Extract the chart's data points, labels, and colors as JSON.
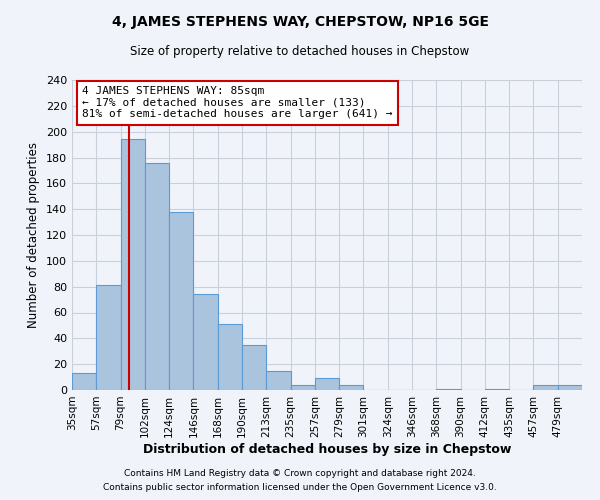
{
  "title": "4, JAMES STEPHENS WAY, CHEPSTOW, NP16 5GE",
  "subtitle": "Size of property relative to detached houses in Chepstow",
  "xlabel": "Distribution of detached houses by size in Chepstow",
  "ylabel": "Number of detached properties",
  "footnote1": "Contains HM Land Registry data © Crown copyright and database right 2024.",
  "footnote2": "Contains public sector information licensed under the Open Government Licence v3.0.",
  "bar_labels": [
    "35sqm",
    "57sqm",
    "79sqm",
    "102sqm",
    "124sqm",
    "146sqm",
    "168sqm",
    "190sqm",
    "213sqm",
    "235sqm",
    "257sqm",
    "279sqm",
    "301sqm",
    "324sqm",
    "346sqm",
    "368sqm",
    "390sqm",
    "412sqm",
    "435sqm",
    "457sqm",
    "479sqm"
  ],
  "bar_heights": [
    13,
    81,
    194,
    176,
    138,
    74,
    51,
    35,
    15,
    4,
    9,
    4,
    0,
    0,
    0,
    1,
    0,
    1,
    0,
    4,
    4
  ],
  "bar_color": "#aac4de",
  "bar_edge_color": "#5b9bd5",
  "bar_width": 1.0,
  "ylim": [
    0,
    240
  ],
  "yticks": [
    0,
    20,
    40,
    60,
    80,
    100,
    120,
    140,
    160,
    180,
    200,
    220,
    240
  ],
  "vline_x": 2.35,
  "vline_color": "#cc0000",
  "annotation_title": "4 JAMES STEPHENS WAY: 85sqm",
  "annotation_line1": "← 17% of detached houses are smaller (133)",
  "annotation_line2": "81% of semi-detached houses are larger (641) →",
  "annotation_box_color": "#ffffff",
  "annotation_box_edge": "#cc0000",
  "bg_color": "#f0f4fa",
  "grid_color": "#c8d0dc"
}
